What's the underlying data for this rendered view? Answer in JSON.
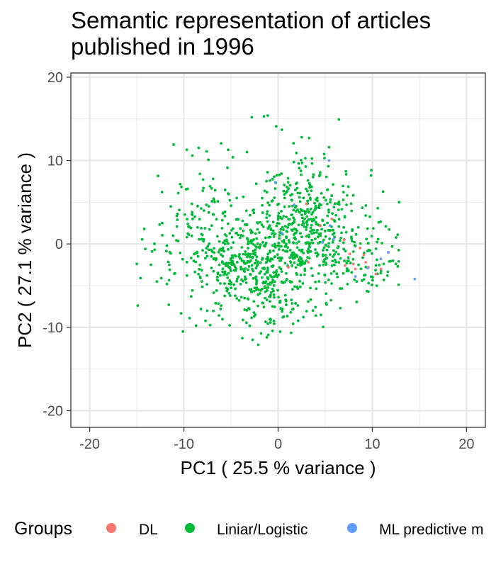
{
  "chart_data": {
    "type": "scatter",
    "title_lines": [
      "Semantic representation of articles",
      "published in 1996"
    ],
    "xlabel": "PC1 ( 25.5 % variance )",
    "ylabel": "PC2 ( 27.1 % variance )",
    "xlim": [
      -22,
      22
    ],
    "ylim": [
      -22,
      20.5
    ],
    "x_ticks": [
      -20,
      -10,
      0,
      10,
      20
    ],
    "y_ticks": [
      -20,
      -10,
      0,
      10,
      20
    ],
    "grid": true,
    "legend_placement": "bottom",
    "legend_title": "Groups",
    "series": [
      {
        "name": "DL",
        "color": "#F8766D",
        "points": [
          [
            3,
            4.8
          ],
          [
            4.5,
            2.2
          ],
          [
            5.7,
            3
          ],
          [
            7,
            0.5
          ],
          [
            7.6,
            -1.2
          ],
          [
            8,
            -2.4
          ],
          [
            8.2,
            -3
          ],
          [
            8.7,
            -0.5
          ],
          [
            9.1,
            -1.3
          ],
          [
            9.3,
            -2.2
          ],
          [
            9.6,
            -2.8
          ],
          [
            10.4,
            -3.6
          ],
          [
            10.9,
            -3
          ],
          [
            7.1,
            -2.6
          ],
          [
            1.1,
            -2.8
          ],
          [
            3.2,
            -2.2
          ]
        ]
      },
      {
        "name": "Liniar/Logistic",
        "color": "#00BA38",
        "cloud": {
          "seed": 1996,
          "clusters": [
            {
              "n": 430,
              "cx": -2.5,
              "cy": -2.5,
              "sx": 3.2,
              "sy": 3.0
            },
            {
              "n": 360,
              "cx": 2.5,
              "cy": 3.0,
              "sx": 2.8,
              "sy": 3.6
            },
            {
              "n": 140,
              "cx": -8,
              "cy": 1.5,
              "sx": 2.5,
              "sy": 3.5
            },
            {
              "n": 130,
              "cx": 7.5,
              "cy": -1.5,
              "sx": 2.6,
              "sy": 2.6
            },
            {
              "n": 40,
              "cx": -1,
              "cy": -8.5,
              "sx": 2.8,
              "sy": 1.5
            }
          ]
        },
        "points": [
          [
            -1.5,
            15.3
          ],
          [
            -2.8,
            15.2
          ],
          [
            -1.1,
            15.4
          ],
          [
            -0.2,
            14.1
          ],
          [
            0.4,
            13.7
          ],
          [
            2.5,
            12.8
          ],
          [
            3.3,
            12.7
          ],
          [
            5.4,
            11.6
          ],
          [
            -9.7,
            11.3
          ],
          [
            -9.1,
            10.6
          ],
          [
            -7.4,
            10.1
          ],
          [
            -7.6,
            11.1
          ],
          [
            -5.3,
            11.3
          ],
          [
            -4.8,
            10.4
          ],
          [
            -8.3,
            8.4
          ],
          [
            -6.9,
            7.8
          ],
          [
            -9.6,
            6.6
          ],
          [
            -10.6,
            6.1
          ],
          [
            -11.4,
            4.5
          ],
          [
            -12.3,
            2.5
          ],
          [
            -14.2,
            1.8
          ],
          [
            -13.1,
            -0.7
          ],
          [
            -14.1,
            -0.6
          ],
          [
            -15,
            -2.4
          ],
          [
            -14.6,
            -4.1
          ],
          [
            -13.5,
            -2.5
          ],
          [
            -12.4,
            -4.1
          ],
          [
            -11.8,
            -4.8
          ],
          [
            -11.5,
            -3.1
          ],
          [
            -14.9,
            -7.4
          ],
          [
            -11.6,
            -7.3
          ],
          [
            -10.1,
            -10.5
          ],
          [
            -9.4,
            -8.9
          ],
          [
            -8.7,
            -9.8
          ],
          [
            -8.2,
            -7.8
          ],
          [
            -6.1,
            -7.8
          ],
          [
            -3.8,
            -11.3
          ],
          [
            -2.7,
            -11.5
          ],
          [
            -2.1,
            -12.1
          ],
          [
            -1.2,
            -11.2
          ],
          [
            0.5,
            -8.8
          ],
          [
            1.6,
            -7.8
          ],
          [
            5.1,
            -7.1
          ],
          [
            6.6,
            -7.7
          ],
          [
            12.5,
            -2.4
          ],
          [
            12.8,
            -2.1
          ],
          [
            12.1,
            -0.3
          ],
          [
            11.2,
            -2.4
          ],
          [
            10.9,
            -3.5
          ],
          [
            11.6,
            -3.8
          ],
          [
            11.8,
            -2.1
          ],
          [
            12.7,
            -2.7
          ],
          [
            8.9,
            -4.4
          ],
          [
            9.6,
            -4.7
          ],
          [
            8.1,
            -4.3
          ]
        ]
      },
      {
        "name": "ML predictive m",
        "color": "#619CFF",
        "points": [
          [
            5.4,
            10
          ],
          [
            -0.3,
            7.4
          ],
          [
            5.5,
            2.2
          ],
          [
            5.9,
            0.6
          ],
          [
            0.4,
            1.3
          ],
          [
            10.9,
            -1.8
          ],
          [
            11.7,
            -1
          ],
          [
            9.5,
            -2.9
          ],
          [
            8.2,
            -3.9
          ],
          [
            14.5,
            -4.2
          ],
          [
            1.7,
            4.7
          ],
          [
            4.7,
            0.2
          ]
        ]
      }
    ]
  }
}
